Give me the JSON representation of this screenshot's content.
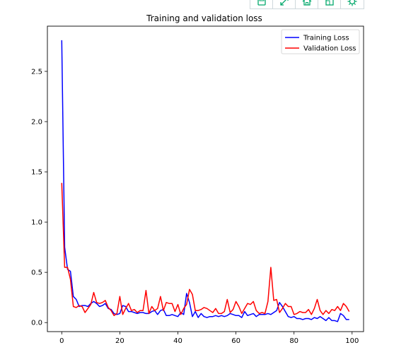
{
  "toolbar": {
    "icons": [
      "save-icon",
      "zoom-icon",
      "home-icon",
      "pan-icon",
      "settings-icon"
    ],
    "accent": "#00a86b"
  },
  "chart_data": {
    "type": "line",
    "title": "Training and validation loss",
    "xlabel": "",
    "ylabel": "",
    "xlim": [
      -4.95,
      103.95
    ],
    "ylim": [
      -0.09,
      2.95
    ],
    "xticks": [
      0,
      20,
      40,
      60,
      80,
      100
    ],
    "yticks": [
      0.0,
      0.5,
      1.0,
      1.5,
      2.0,
      2.5
    ],
    "ytick_labels": [
      "0.0",
      "0.5",
      "1.0",
      "1.5",
      "2.0",
      "2.5"
    ],
    "grid": false,
    "legend_position": "upper right",
    "x": [
      0,
      1,
      2,
      3,
      4,
      5,
      6,
      7,
      8,
      9,
      10,
      11,
      12,
      13,
      14,
      15,
      16,
      17,
      18,
      19,
      20,
      21,
      22,
      23,
      24,
      25,
      26,
      27,
      28,
      29,
      30,
      31,
      32,
      33,
      34,
      35,
      36,
      37,
      38,
      39,
      40,
      41,
      42,
      43,
      44,
      45,
      46,
      47,
      48,
      49,
      50,
      51,
      52,
      53,
      54,
      55,
      56,
      57,
      58,
      59,
      60,
      61,
      62,
      63,
      64,
      65,
      66,
      67,
      68,
      69,
      70,
      71,
      72,
      73,
      74,
      75,
      76,
      77,
      78,
      79,
      80,
      81,
      82,
      83,
      84,
      85,
      86,
      87,
      88,
      89,
      90,
      91,
      92,
      93,
      94,
      95,
      96,
      97,
      98,
      99
    ],
    "series": [
      {
        "name": "Training Loss",
        "color": "#0000ff",
        "values": [
          2.81,
          0.75,
          0.53,
          0.51,
          0.26,
          0.23,
          0.16,
          0.17,
          0.17,
          0.16,
          0.19,
          0.21,
          0.19,
          0.16,
          0.17,
          0.19,
          0.14,
          0.13,
          0.09,
          0.08,
          0.09,
          0.17,
          0.16,
          0.11,
          0.11,
          0.1,
          0.09,
          0.1,
          0.1,
          0.09,
          0.09,
          0.11,
          0.12,
          0.08,
          0.12,
          0.13,
          0.07,
          0.07,
          0.08,
          0.07,
          0.06,
          0.1,
          0.08,
          0.29,
          0.2,
          0.06,
          0.11,
          0.05,
          0.09,
          0.06,
          0.05,
          0.06,
          0.06,
          0.07,
          0.06,
          0.07,
          0.06,
          0.07,
          0.09,
          0.08,
          0.07,
          0.07,
          0.05,
          0.11,
          0.07,
          0.08,
          0.09,
          0.06,
          0.08,
          0.08,
          0.08,
          0.09,
          0.08,
          0.1,
          0.12,
          0.2,
          0.16,
          0.11,
          0.06,
          0.05,
          0.06,
          0.04,
          0.04,
          0.03,
          0.04,
          0.04,
          0.03,
          0.05,
          0.04,
          0.06,
          0.04,
          0.02,
          0.05,
          0.02,
          0.02,
          0.01,
          0.09,
          0.07,
          0.03,
          0.03
        ]
      },
      {
        "name": "Validation Loss",
        "color": "#ff0000",
        "values": [
          1.39,
          0.55,
          0.55,
          0.43,
          0.16,
          0.15,
          0.17,
          0.16,
          0.1,
          0.14,
          0.18,
          0.3,
          0.2,
          0.19,
          0.2,
          0.22,
          0.15,
          0.12,
          0.07,
          0.09,
          0.26,
          0.08,
          0.14,
          0.19,
          0.12,
          0.13,
          0.1,
          0.12,
          0.12,
          0.32,
          0.09,
          0.16,
          0.12,
          0.14,
          0.26,
          0.12,
          0.2,
          0.19,
          0.19,
          0.11,
          0.18,
          0.08,
          0.14,
          0.18,
          0.33,
          0.28,
          0.12,
          0.12,
          0.13,
          0.15,
          0.14,
          0.12,
          0.1,
          0.14,
          0.09,
          0.09,
          0.11,
          0.23,
          0.1,
          0.13,
          0.21,
          0.16,
          0.09,
          0.14,
          0.19,
          0.18,
          0.21,
          0.12,
          0.09,
          0.1,
          0.09,
          0.21,
          0.55,
          0.22,
          0.23,
          0.1,
          0.14,
          0.19,
          0.16,
          0.16,
          0.08,
          0.09,
          0.11,
          0.1,
          0.1,
          0.13,
          0.08,
          0.14,
          0.23,
          0.12,
          0.08,
          0.12,
          0.09,
          0.13,
          0.12,
          0.16,
          0.12,
          0.19,
          0.16,
          0.11
        ]
      }
    ]
  }
}
